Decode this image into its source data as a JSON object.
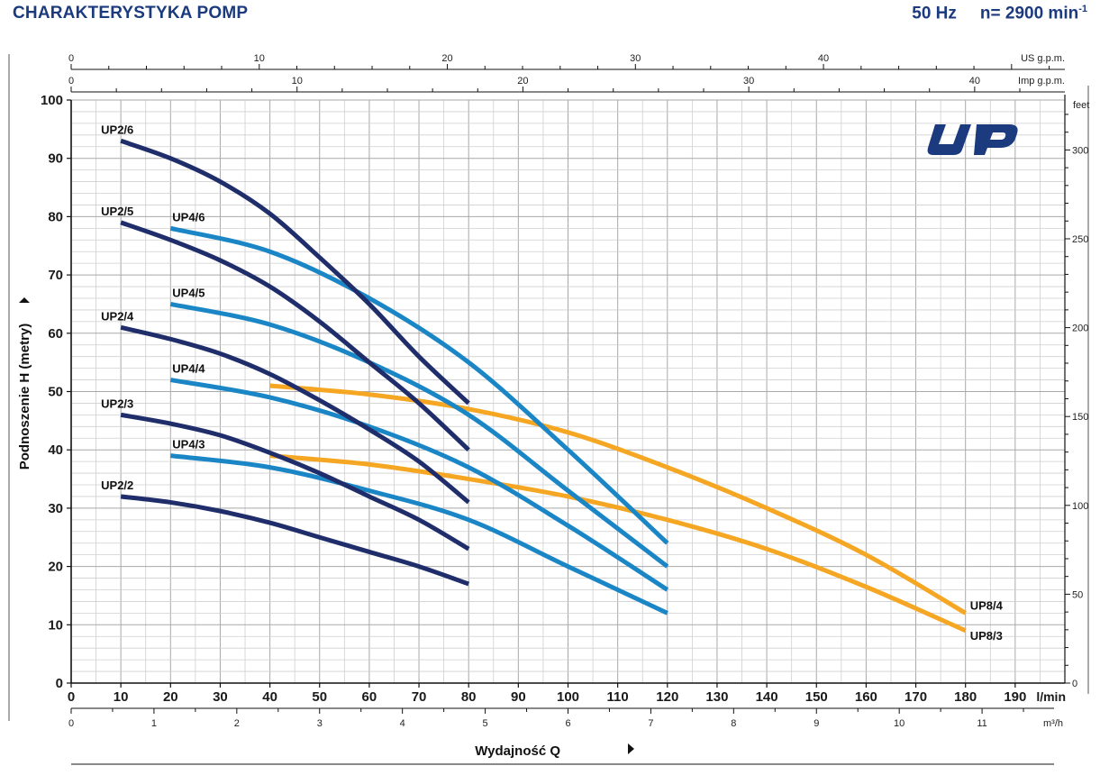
{
  "header": {
    "title": "CHARAKTERYSTYKA POMP",
    "frequency": "50 Hz",
    "speed": "n= 2900 min",
    "speed_exp": "-1"
  },
  "logo_text": "UP",
  "colors": {
    "navy": "#1f2e6b",
    "blue": "#1b86c6",
    "orange": "#f5a623",
    "grid": "#b9b9b9",
    "heading": "#1c3a7e"
  },
  "chart_data": {
    "type": "line",
    "title": "CHARAKTERYSTYKA POMP",
    "xlabel": "Wydajność Q",
    "ylabel": "Podnoszenie H (metry)",
    "xlim": [
      0,
      200
    ],
    "ylim": [
      0,
      100
    ],
    "grid": true,
    "x_unit": "l/min",
    "x_ticks": [
      0,
      10,
      20,
      30,
      40,
      50,
      60,
      70,
      80,
      90,
      100,
      110,
      120,
      130,
      140,
      150,
      160,
      170,
      180,
      190
    ],
    "y_ticks": [
      0,
      10,
      20,
      30,
      40,
      50,
      60,
      70,
      80,
      90,
      100
    ],
    "secondary_axes": {
      "m3h": {
        "unit": "m³/h",
        "ticks": [
          0,
          1,
          2,
          3,
          4,
          5,
          6,
          7,
          8,
          9,
          10,
          11
        ]
      },
      "us_gpm": {
        "unit": "US g.p.m.",
        "ticks": [
          0,
          10,
          20,
          30,
          40
        ]
      },
      "imp_gpm": {
        "unit": "Imp g.p.m.",
        "ticks": [
          0,
          10,
          20,
          30,
          40
        ]
      },
      "feet": {
        "unit": "feet",
        "ticks": [
          0,
          50,
          100,
          150,
          200,
          250,
          300
        ]
      }
    },
    "series": [
      {
        "name": "UP2/6",
        "group": "navy",
        "x": [
          10,
          20,
          30,
          40,
          50,
          60,
          70,
          80
        ],
        "y": [
          93,
          90,
          86,
          80.5,
          73,
          65,
          56,
          48
        ]
      },
      {
        "name": "UP2/5",
        "group": "navy",
        "x": [
          10,
          20,
          30,
          40,
          50,
          60,
          70,
          80
        ],
        "y": [
          79,
          76,
          72.5,
          68,
          62,
          55,
          48,
          40
        ]
      },
      {
        "name": "UP2/4",
        "group": "navy",
        "x": [
          10,
          20,
          30,
          40,
          50,
          60,
          70,
          80
        ],
        "y": [
          61,
          59,
          56.5,
          53,
          48.5,
          43.5,
          38,
          31
        ]
      },
      {
        "name": "UP2/3",
        "group": "navy",
        "x": [
          10,
          20,
          30,
          40,
          50,
          60,
          70,
          80
        ],
        "y": [
          46,
          44.5,
          42.5,
          39.5,
          36,
          32,
          28,
          23
        ]
      },
      {
        "name": "UP2/2",
        "group": "navy",
        "x": [
          10,
          20,
          30,
          40,
          50,
          60,
          70,
          80
        ],
        "y": [
          32,
          31,
          29.5,
          27.5,
          25,
          22.5,
          20,
          17
        ]
      },
      {
        "name": "UP4/6",
        "group": "blue",
        "x": [
          20,
          40,
          60,
          80,
          100,
          120
        ],
        "y": [
          78,
          74,
          66,
          55,
          40,
          24
        ]
      },
      {
        "name": "UP4/5",
        "group": "blue",
        "x": [
          20,
          40,
          60,
          80,
          100,
          120
        ],
        "y": [
          65,
          61.5,
          55,
          46,
          33,
          20
        ]
      },
      {
        "name": "UP4/4",
        "group": "blue",
        "x": [
          20,
          40,
          60,
          80,
          100,
          120
        ],
        "y": [
          52,
          49,
          44,
          37,
          27,
          16
        ]
      },
      {
        "name": "UP4/3",
        "group": "blue",
        "x": [
          20,
          40,
          60,
          80,
          100,
          120
        ],
        "y": [
          39,
          37,
          33,
          28,
          20,
          12
        ]
      },
      {
        "name": "UP8/4",
        "group": "orange",
        "x": [
          40,
          60,
          80,
          100,
          120,
          140,
          160,
          180
        ],
        "y": [
          51,
          49.5,
          47,
          43,
          37,
          30,
          22,
          12
        ]
      },
      {
        "name": "UP8/3",
        "group": "orange",
        "x": [
          40,
          60,
          80,
          100,
          120,
          140,
          160,
          180
        ],
        "y": [
          39,
          37.5,
          35,
          32,
          28,
          23,
          16.5,
          9
        ]
      }
    ]
  }
}
